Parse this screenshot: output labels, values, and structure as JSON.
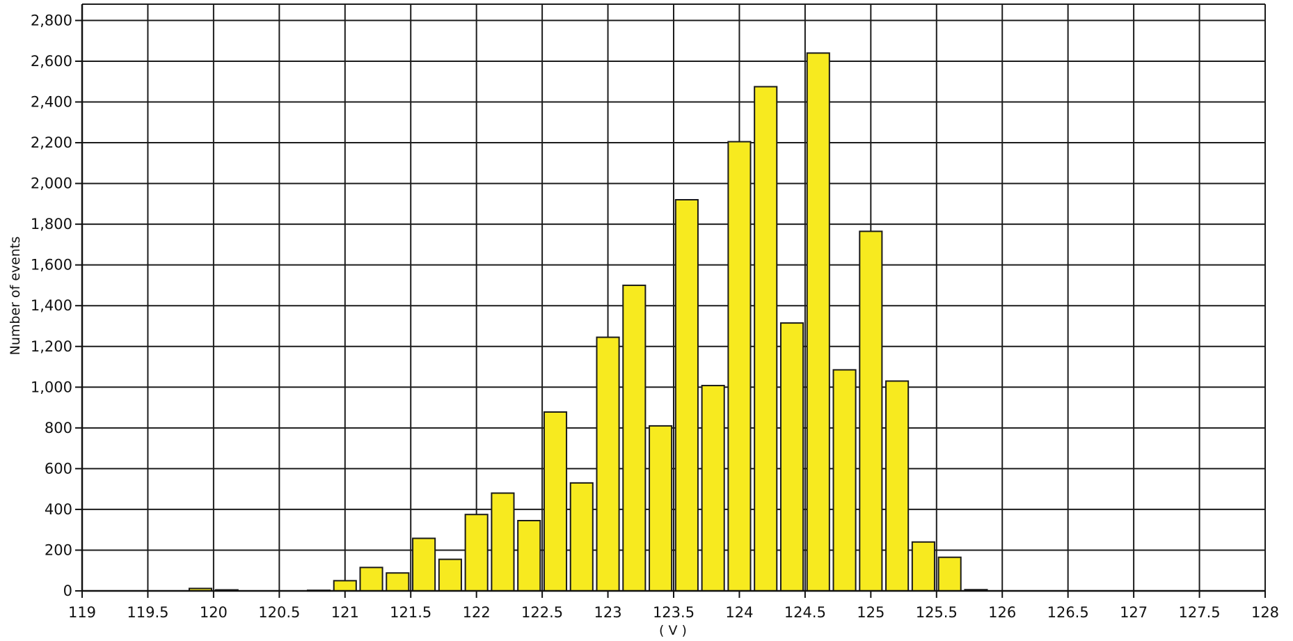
{
  "chart_data": {
    "type": "bar",
    "xlabel": "( V )",
    "ylabel": "Number of events",
    "xlim": [
      119,
      128
    ],
    "ylim": [
      0,
      2880
    ],
    "x_ticks": [
      119,
      119.5,
      120,
      120.5,
      121,
      121.5,
      122,
      122.5,
      123,
      123.5,
      124,
      124.5,
      125,
      125.5,
      126,
      126.5,
      127,
      127.5,
      128
    ],
    "x_tick_labels": [
      "119",
      "119.5",
      "120",
      "120.5",
      "121",
      "121.5",
      "122",
      "122.5",
      "123",
      "123.5",
      "124",
      "124.5",
      "125",
      "125.5",
      "126",
      "126.5",
      "127",
      "127.5",
      "128"
    ],
    "y_ticks": [
      0,
      200,
      400,
      600,
      800,
      1000,
      1200,
      1400,
      1600,
      1800,
      2000,
      2200,
      2400,
      2600,
      2800
    ],
    "y_tick_labels": [
      "0",
      "200",
      "400",
      "600",
      "800",
      "1,000",
      "1,200",
      "1,400",
      "1,600",
      "1,800",
      "2,000",
      "2,200",
      "2,400",
      "2,600",
      "2,800"
    ],
    "grid": true,
    "bar_width": 0.17,
    "bar_color": "#f7ea1f",
    "bar_edge_color": "#1a1a1a",
    "x": [
      119.9,
      120.1,
      120.8,
      121.0,
      121.2,
      121.4,
      121.6,
      121.8,
      122.0,
      122.2,
      122.4,
      122.6,
      122.8,
      123.0,
      123.2,
      123.4,
      123.6,
      123.8,
      124.0,
      124.2,
      124.4,
      124.6,
      124.8,
      125.0,
      125.2,
      125.4,
      125.6,
      125.8
    ],
    "values": [
      12,
      5,
      3,
      50,
      115,
      88,
      258,
      155,
      375,
      480,
      345,
      878,
      530,
      1245,
      1500,
      810,
      1920,
      1008,
      2205,
      2475,
      1315,
      2640,
      1085,
      1765,
      1030,
      240,
      165,
      6
    ]
  }
}
